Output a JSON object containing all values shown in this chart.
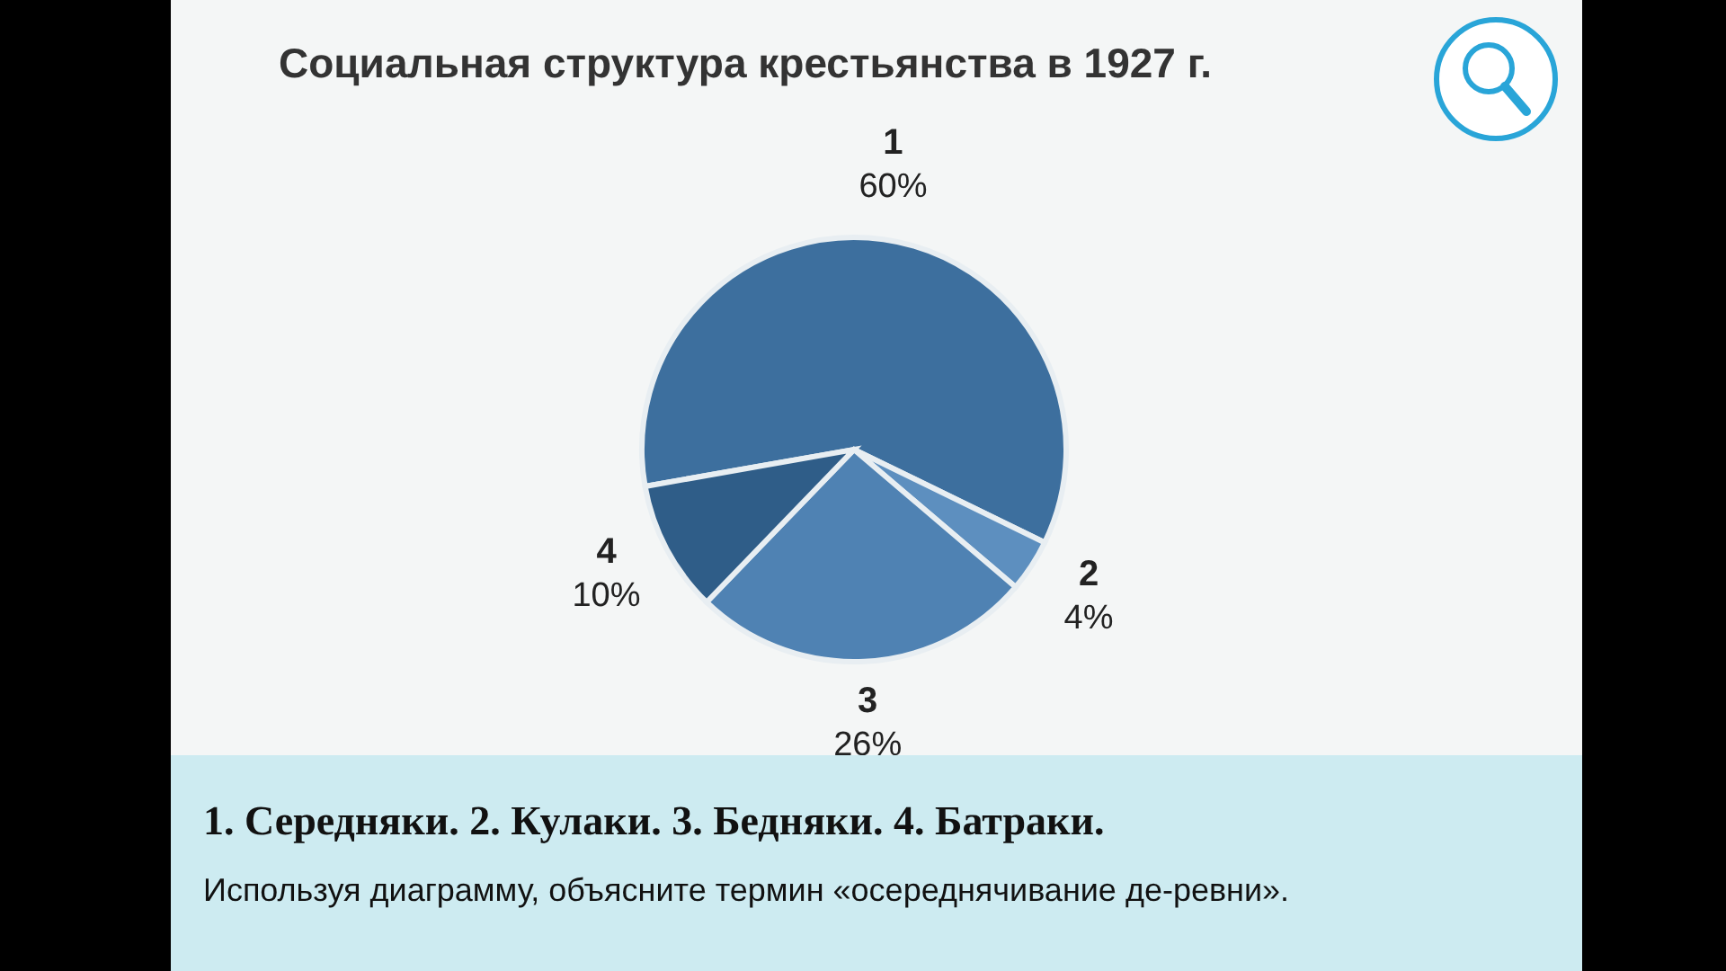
{
  "chart_data": {
    "type": "pie",
    "title": "Социальная структура крестьянства в 1927 г.",
    "categories": [
      "1",
      "2",
      "3",
      "4"
    ],
    "values": [
      60,
      4,
      26,
      10
    ],
    "value_labels": [
      "60%",
      "4%",
      "26%",
      "10%"
    ],
    "colors": [
      "#3d6f9e",
      "#5d8fbf",
      "#4f82b3",
      "#2f5d88"
    ],
    "annotations": [
      "1. Середняки. 2. Кулаки. 3. Бедняки. 4. Батраки.",
      "Используя диаграмму, объясните термин «осереднячивание де-ревни»."
    ],
    "legend": false
  }
}
